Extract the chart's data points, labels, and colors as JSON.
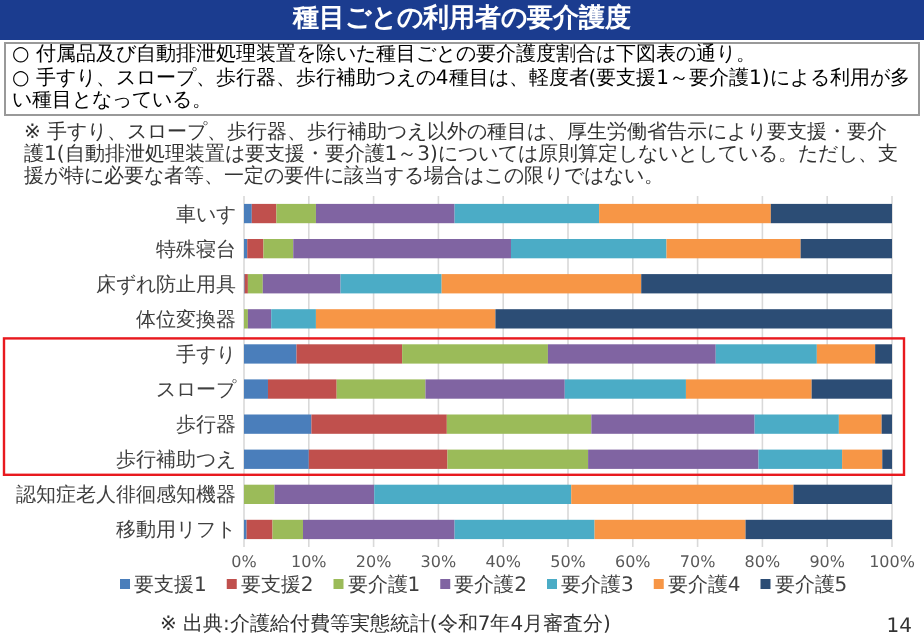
{
  "chart_data": {
    "type": "bar",
    "orientation": "horizontal",
    "stacked": true,
    "title": "種目ごとの利用者の要介護度",
    "annotations": [
      "○ 付属品及び自動排泄処理装置を除いた種目ごとの要介護度割合は下図表の通り。",
      "○ 手すり、スロープ、歩行器、歩行補助つえの4種目は、軽度者(要支援1～要介護1)による利用が多い種目となっている。",
      "※ 手すり、スロープ、歩行器、歩行補助つえ以外の種目は、厚生労働省告示により要支援・要介護1(自動排泄処理装置は要支援・要介護1～3)については原則算定しないとしている。ただし、支援が特に必要な者等、一定の要件に該当する場合はこの限りではない。",
      "※ 出典:介護給付費等実態統計(令和7年4月審査分)",
      "14"
    ],
    "categories": [
      "車いす",
      "特殊寝台",
      "床ずれ防止用具",
      "体位変換器",
      "手すり",
      "スロープ",
      "歩行器",
      "歩行補助つえ",
      "認知症老人徘徊感知機器",
      "移動用リフト"
    ],
    "xlim": [
      0,
      100
    ],
    "xticks": [
      {
        "value": 0,
        "label": "0%"
      },
      {
        "value": 10,
        "label": "10%"
      },
      {
        "value": 20,
        "label": "20%"
      },
      {
        "value": 30,
        "label": "30%"
      },
      {
        "value": 40,
        "label": "40%"
      },
      {
        "value": 50,
        "label": "50%"
      },
      {
        "value": 60,
        "label": "60%"
      },
      {
        "value": 70,
        "label": "70%"
      },
      {
        "value": 80,
        "label": "80%"
      },
      {
        "value": 90,
        "label": "90%"
      },
      {
        "value": 100,
        "label": "100%"
      }
    ],
    "grid": "x",
    "legend": "bottom",
    "series": [
      {
        "name": "要支援1",
        "color": "#4a7ebb",
        "values": [
          1.2,
          0.5,
          0.1,
          0,
          8.1,
          3.7,
          10.4,
          10.0,
          0,
          0.4
        ]
      },
      {
        "name": "要支援2",
        "color": "#c0504d",
        "values": [
          3.8,
          2.5,
          0.5,
          0,
          16.3,
          10.6,
          20.9,
          21.4,
          0,
          4.0
        ]
      },
      {
        "name": "要介護1",
        "color": "#9bbb59",
        "values": [
          6.1,
          4.6,
          2.3,
          0.6,
          22.5,
          13.7,
          22.3,
          21.7,
          4.7,
          4.7
        ]
      },
      {
        "name": "要介護2",
        "color": "#8064a2",
        "values": [
          21.4,
          33.6,
          12.0,
          3.6,
          25.9,
          21.5,
          25.2,
          26.3,
          15.4,
          23.4
        ]
      },
      {
        "name": "要介護3",
        "color": "#4bacc6",
        "values": [
          22.3,
          24.0,
          15.6,
          6.9,
          15.6,
          18.7,
          13.0,
          12.9,
          30.4,
          21.6
        ]
      },
      {
        "name": "要介護4",
        "color": "#f79646",
        "values": [
          26.5,
          20.7,
          30.8,
          27.7,
          9.0,
          19.4,
          6.6,
          6.2,
          34.3,
          23.3
        ]
      },
      {
        "name": "要介護5",
        "color": "#2c4d75",
        "values": [
          18.7,
          14.1,
          38.7,
          61.2,
          2.6,
          12.4,
          1.6,
          1.5,
          15.2,
          22.6
        ]
      }
    ]
  }
}
